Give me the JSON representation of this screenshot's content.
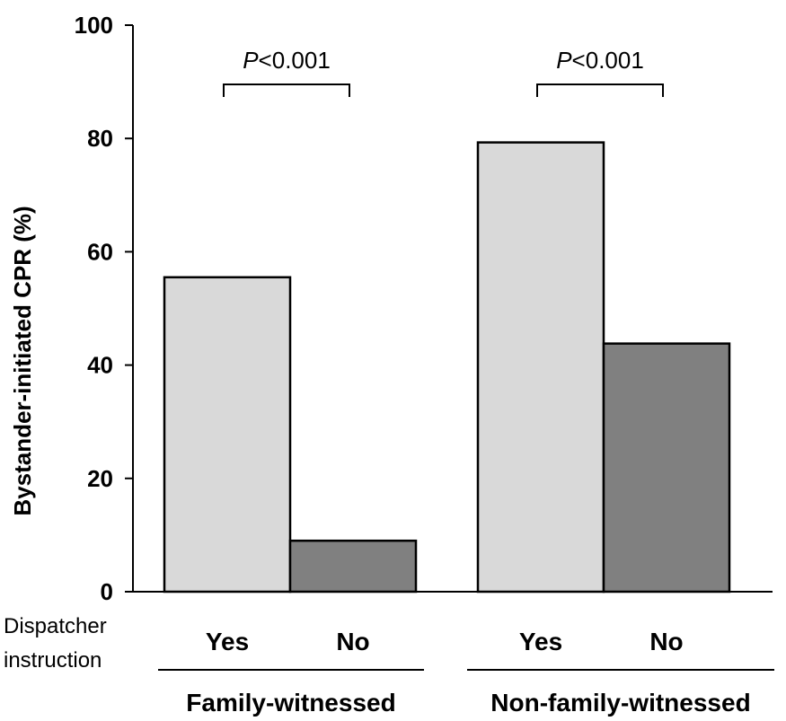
{
  "chart_data": {
    "type": "bar",
    "ylabel": "Bystander-initiated CPR (%)",
    "ylim": [
      0,
      100
    ],
    "yticks": [
      0,
      20,
      40,
      60,
      80,
      100
    ],
    "grid": false,
    "row_label_line1": "Dispatcher",
    "row_label_line2": "instruction",
    "categories": [
      "Yes",
      "No",
      "Yes",
      "No"
    ],
    "groups": [
      {
        "name": "Family-witnessed",
        "bars": [
          {
            "label": "Yes",
            "value": 55.5,
            "color": "#d9d9d9"
          },
          {
            "label": "No",
            "value": 9.0,
            "color": "#808080"
          }
        ],
        "annotation": {
          "prefix": "P",
          "text": "<0.001"
        }
      },
      {
        "name": "Non-family-witnessed",
        "bars": [
          {
            "label": "Yes",
            "value": 79.3,
            "color": "#d9d9d9"
          },
          {
            "label": "No",
            "value": 43.8,
            "color": "#808080"
          }
        ],
        "annotation": {
          "prefix": "P",
          "text": "<0.001"
        }
      }
    ]
  }
}
